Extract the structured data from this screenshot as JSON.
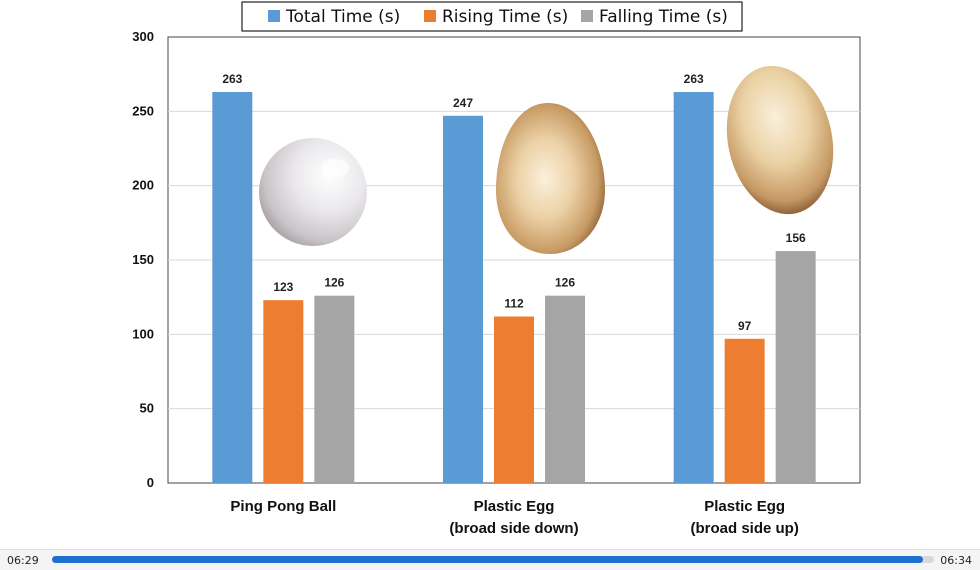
{
  "chart_data": {
    "type": "bar",
    "title": "",
    "xlabel": "",
    "ylabel": "",
    "categories": [
      [
        "Ping Pong Ball"
      ],
      [
        "Plastic Egg",
        "(broad side down)"
      ],
      [
        "Plastic Egg",
        "(broad side up)"
      ]
    ],
    "series": [
      {
        "name": "Total Time (s)",
        "color": "#5b9bd5",
        "values": [
          263,
          247,
          263
        ]
      },
      {
        "name": "Rising Time (s)",
        "color": "#ed7d31",
        "values": [
          123,
          112,
          97
        ]
      },
      {
        "name": "Falling Time (s)",
        "color": "#a5a5a5",
        "values": [
          126,
          126,
          156
        ]
      }
    ],
    "ylim": [
      0,
      300
    ],
    "yticks": [
      0,
      50,
      100,
      150,
      200,
      250,
      300
    ],
    "grid": true,
    "legend_position": "top-center",
    "images": [
      "ping-pong-ball",
      "plastic-egg",
      "plastic-egg-tilted"
    ]
  },
  "player": {
    "elapsed": "06:29",
    "total": "06:34",
    "progress_fraction": 0.987
  }
}
